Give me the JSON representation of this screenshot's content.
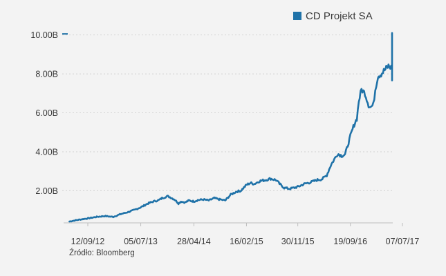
{
  "source": "Źródło: Bloomberg",
  "colors": {
    "series": "#1f72a8",
    "background": "#f3f3f3"
  },
  "chart_data": {
    "type": "line",
    "title": "",
    "xlabel": "",
    "ylabel": "",
    "legend": {
      "position": "top-right",
      "entries": [
        "CD Projekt SA"
      ]
    },
    "grid": "horizontal-dotted",
    "ylim": [
      0.35,
      10.2
    ],
    "xlim": [
      "2012-06-01",
      "2017-09-30"
    ],
    "yticks": [
      {
        "value": 2,
        "label": "2.00B"
      },
      {
        "value": 4,
        "label": "4.00B"
      },
      {
        "value": 6,
        "label": "6.00B"
      },
      {
        "value": 8,
        "label": "8.00B"
      },
      {
        "value": 10,
        "label": "10.00B"
      }
    ],
    "xticks": [
      {
        "date": "2012-09-12",
        "label": "12/09/12"
      },
      {
        "date": "2013-07-05",
        "label": "05/07/13"
      },
      {
        "date": "2014-04-28",
        "label": "28/04/14"
      },
      {
        "date": "2015-02-16",
        "label": "16/02/15"
      },
      {
        "date": "2015-11-30",
        "label": "30/11/15"
      },
      {
        "date": "2016-09-19",
        "label": "19/09/16"
      },
      {
        "date": "2017-07-07",
        "label": "07/07/17"
      }
    ],
    "series": [
      {
        "name": "CD Projekt SA",
        "x": [
          "2012-06-01",
          "2012-07-15",
          "2012-09-12",
          "2012-11-01",
          "2012-12-15",
          "2013-02-01",
          "2013-03-15",
          "2013-05-01",
          "2013-06-01",
          "2013-07-05",
          "2013-08-15",
          "2013-09-15",
          "2013-10-15",
          "2013-11-01",
          "2013-12-01",
          "2013-12-20",
          "2014-01-10",
          "2014-02-01",
          "2014-02-15",
          "2014-03-10",
          "2014-04-01",
          "2014-04-28",
          "2014-05-20",
          "2014-06-20",
          "2014-07-20",
          "2014-08-20",
          "2014-09-20",
          "2014-10-20",
          "2014-11-20",
          "2014-12-20",
          "2015-01-15",
          "2015-02-16",
          "2015-03-10",
          "2015-04-01",
          "2015-05-01",
          "2015-06-01",
          "2015-07-01",
          "2015-08-01",
          "2015-08-20",
          "2015-09-15",
          "2015-10-15",
          "2015-11-30",
          "2016-01-05",
          "2016-02-15",
          "2016-03-15",
          "2016-04-15",
          "2016-05-10",
          "2016-06-01",
          "2016-06-20",
          "2016-07-10",
          "2016-08-01",
          "2016-08-20",
          "2016-09-19",
          "2016-10-10",
          "2016-10-25",
          "2016-11-05",
          "2016-11-20",
          "2016-12-10",
          "2016-12-30",
          "2017-01-10",
          "2017-01-25",
          "2017-02-05",
          "2017-02-20",
          "2017-03-10",
          "2017-03-30",
          "2017-04-20",
          "2017-05-10",
          "2017-06-01",
          "2017-06-20",
          "2017-07-01",
          "2017-07-08",
          "2017-07-10",
          "2017-07-12",
          "2017-07-14"
        ],
        "values": [
          0.42,
          0.5,
          0.58,
          0.66,
          0.7,
          0.66,
          0.8,
          0.92,
          1.02,
          1.15,
          1.35,
          1.45,
          1.52,
          1.62,
          1.72,
          1.65,
          1.55,
          1.35,
          1.45,
          1.4,
          1.5,
          1.45,
          1.52,
          1.55,
          1.5,
          1.62,
          1.55,
          1.5,
          1.8,
          1.95,
          2.0,
          2.3,
          2.4,
          2.35,
          2.5,
          2.55,
          2.62,
          2.55,
          2.35,
          2.15,
          2.1,
          2.2,
          2.35,
          2.45,
          2.55,
          2.6,
          2.8,
          3.3,
          3.6,
          3.9,
          3.8,
          3.85,
          4.8,
          5.4,
          5.7,
          6.6,
          7.2,
          7.0,
          6.4,
          6.3,
          6.4,
          7.2,
          7.9,
          8.0,
          8.2,
          8.4,
          8.3,
          8.2,
          8.35,
          8.1,
          7.8,
          8.4,
          9.5,
          10.1
        ]
      }
    ]
  }
}
